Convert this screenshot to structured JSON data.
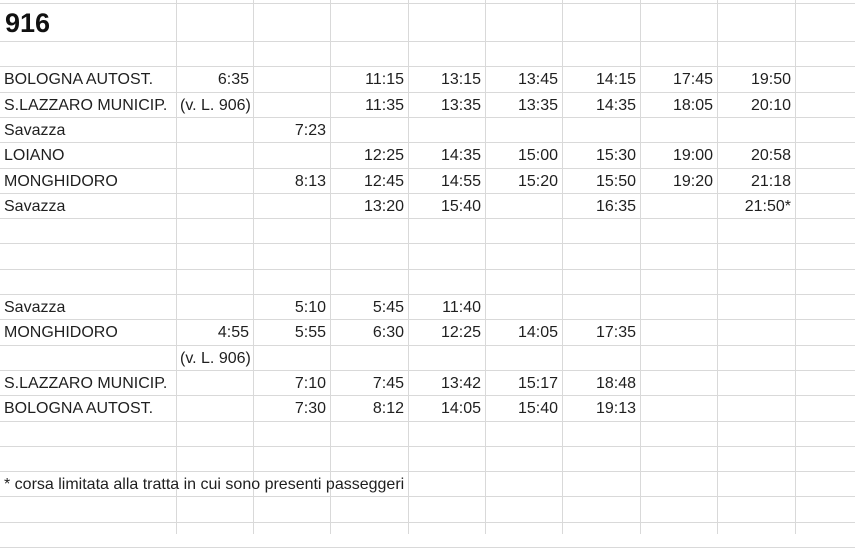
{
  "title": "916",
  "rows": [
    {
      "row": 3,
      "cells": [
        "BOLOGNA AUTOST.",
        "6:35",
        "",
        "11:15",
        "13:15",
        "13:45",
        "14:15",
        "17:45",
        "19:50"
      ]
    },
    {
      "row": 4,
      "cells": [
        "S.LAZZARO MUNICIP.",
        "(v. L. 906)",
        "",
        "11:35",
        "13:35",
        "13:35",
        "14:35",
        "18:05",
        "20:10"
      ]
    },
    {
      "row": 5,
      "cells": [
        "Savazza",
        "",
        "7:23",
        "",
        "",
        "",
        "",
        "",
        ""
      ]
    },
    {
      "row": 6,
      "cells": [
        "LOIANO",
        "",
        "",
        "12:25",
        "14:35",
        "15:00",
        "15:30",
        "19:00",
        "20:58"
      ]
    },
    {
      "row": 7,
      "cells": [
        "MONGHIDORO",
        "",
        "8:13",
        "12:45",
        "14:55",
        "15:20",
        "15:50",
        "19:20",
        "21:18"
      ]
    },
    {
      "row": 8,
      "cells": [
        "Savazza",
        "",
        "",
        "13:20",
        "15:40",
        "",
        "16:35",
        "",
        "21:50*"
      ]
    },
    {
      "row": 12,
      "cells": [
        "Savazza",
        "",
        "5:10",
        "5:45",
        "11:40",
        "",
        "",
        "",
        ""
      ]
    },
    {
      "row": 13,
      "cells": [
        "MONGHIDORO",
        "4:55",
        "5:55",
        "6:30",
        "12:25",
        "14:05",
        "17:35",
        "",
        ""
      ]
    },
    {
      "row": 14,
      "cells": [
        "",
        "(v. L. 906)",
        "",
        "",
        "",
        "",
        "",
        "",
        ""
      ]
    },
    {
      "row": 15,
      "cells": [
        "S.LAZZARO MUNICIP.",
        "",
        "7:10",
        "7:45",
        "13:42",
        "15:17",
        "18:48",
        "",
        ""
      ]
    },
    {
      "row": 16,
      "cells": [
        "BOLOGNA AUTOST.",
        "",
        "7:30",
        "8:12",
        "14:05",
        "15:40",
        "19:13",
        "",
        ""
      ]
    },
    {
      "row": 19,
      "cells": [
        "* corsa limitata alla tratta in cui sono presenti passeggeri",
        "",
        "",
        "",
        "",
        "",
        "",
        "",
        ""
      ]
    }
  ]
}
